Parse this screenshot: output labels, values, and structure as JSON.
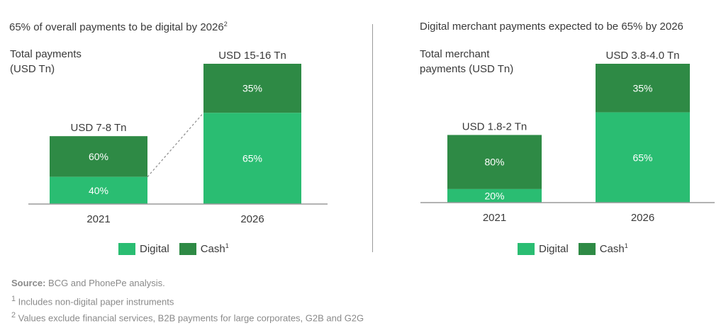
{
  "colors": {
    "digital": "#2abd72",
    "cash": "#2e8a45",
    "axis": "#9a9a9a",
    "dash": "#8a8a8a"
  },
  "legend": {
    "digital": "Digital",
    "cash": "Cash",
    "cash_sup": "1"
  },
  "footer": {
    "source_label": "Source:",
    "source_text": " BCG and PhonePe analysis.",
    "note1_mark": "1",
    "note1_text": " Includes non-digital paper instruments",
    "note2_mark": "2",
    "note2_text": " Values exclude financial services, B2B payments for large corporates, G2B and G2G"
  },
  "chart_data": [
    {
      "type": "bar",
      "stacked": true,
      "title": "65% of overall payments to be digital by 2026",
      "title_sup": "2",
      "ylabel": "Total payments\n(USD Tn)",
      "categories": [
        "2021",
        "2026"
      ],
      "totals": [
        "USD 7-8 Tn",
        "USD 15-16 Tn"
      ],
      "total_midpoints": [
        7.5,
        15.5
      ],
      "series": [
        {
          "name": "Digital",
          "values": [
            40,
            65
          ],
          "labels": [
            "40%",
            "65%"
          ]
        },
        {
          "name": "Cash",
          "values": [
            60,
            35
          ],
          "labels": [
            "60%",
            "35%"
          ]
        }
      ],
      "connector": "dashed",
      "legend_position": "bottom"
    },
    {
      "type": "bar",
      "stacked": true,
      "title": "Digital merchant payments expected to be 65% by 2026",
      "ylabel": "Total merchant\npayments (USD Tn)",
      "categories": [
        "2021",
        "2026"
      ],
      "totals": [
        "USD 1.8-2 Tn",
        "USD 3.8-4.0 Tn"
      ],
      "total_midpoints": [
        1.9,
        3.9
      ],
      "series": [
        {
          "name": "Digital",
          "values": [
            20,
            65
          ],
          "labels": [
            "20%",
            "65%"
          ]
        },
        {
          "name": "Cash",
          "values": [
            80,
            35
          ],
          "labels": [
            "80%",
            "35%"
          ]
        }
      ],
      "legend_position": "bottom"
    }
  ]
}
